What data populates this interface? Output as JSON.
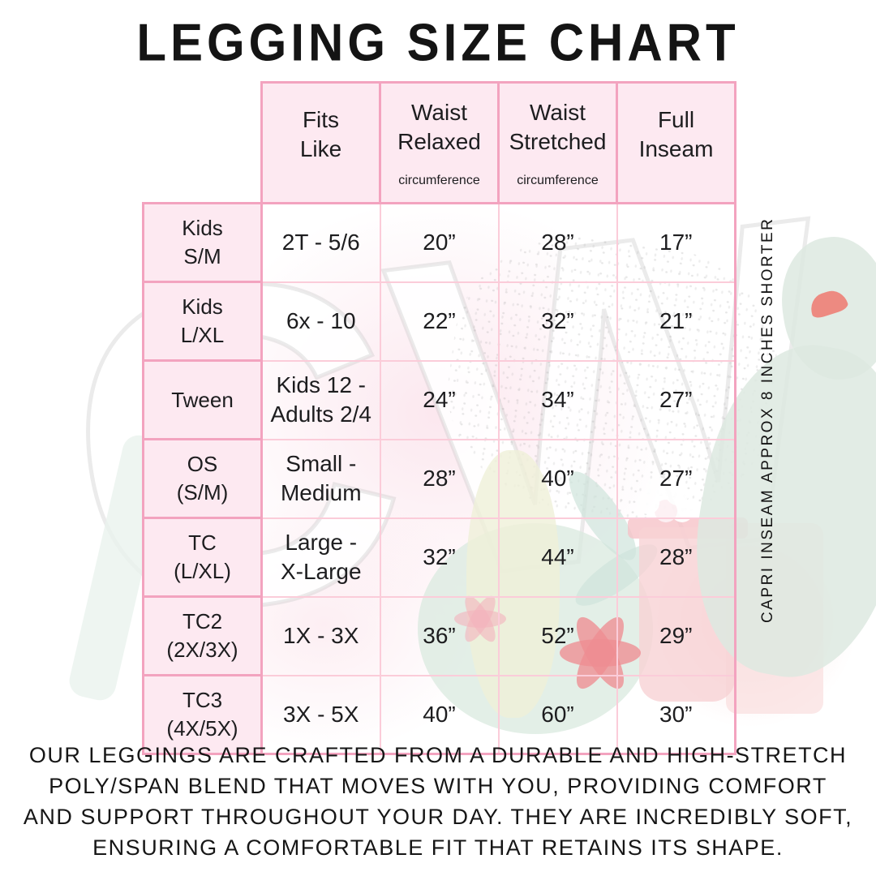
{
  "title": "LEGGING SIZE CHART",
  "side_note": "CAPRI INSEAM APPROX 8 INCHES SHORTER",
  "watermark": {
    "monogram": "CW"
  },
  "colors": {
    "border_strong": "#f3a3bf",
    "border_light": "#fbccd9",
    "header_fill": "#fde9f1",
    "text": "#1d1d1f"
  },
  "table": {
    "headers": [
      {
        "main": "Fits\nLike",
        "sub": ""
      },
      {
        "main": "Waist\nRelaxed",
        "sub": "circumference"
      },
      {
        "main": "Waist\nStretched",
        "sub": "circumference"
      },
      {
        "main": "Full\nInseam",
        "sub": ""
      }
    ],
    "rows": [
      {
        "label": "Kids\nS/M",
        "cells": [
          "2T - 5/6",
          "20”",
          "28”",
          "17”"
        ]
      },
      {
        "label": "Kids\nL/XL",
        "cells": [
          "6x - 10",
          "22”",
          "32”",
          "21”"
        ]
      },
      {
        "label": "Tween",
        "cells": [
          "Kids 12 -\nAdults 2/4",
          "24”",
          "34”",
          "27”"
        ]
      },
      {
        "label": "OS\n(S/M)",
        "cells": [
          "Small -\nMedium",
          "28”",
          "40”",
          "27”"
        ]
      },
      {
        "label": "TC\n(L/XL)",
        "cells": [
          "Large -\nX-Large",
          "32”",
          "44”",
          "28”"
        ]
      },
      {
        "label": "TC2\n(2X/3X)",
        "cells": [
          "1X - 3X",
          "36”",
          "52”",
          "29”"
        ]
      },
      {
        "label": "TC3\n(4X/5X)",
        "cells": [
          "3X - 5X",
          "40”",
          "60”",
          "30”"
        ]
      }
    ]
  },
  "footer": {
    "lines": [
      "OUR LEGGINGS ARE CRAFTED FROM A DURABLE AND HIGH-STRETCH",
      "POLY/SPAN BLEND THAT MOVES WITH YOU, PROVIDING COMFORT",
      "AND SUPPORT THROUGHOUT YOUR DAY. THEY ARE INCREDIBLY SOFT,",
      "ENSURING A COMFORTABLE FIT THAT RETAINS ITS SHAPE."
    ]
  },
  "chart_data": {
    "type": "table",
    "title": "LEGGING SIZE CHART",
    "columns": [
      "",
      "Fits Like",
      "Waist Relaxed circumference",
      "Waist Stretched circumference",
      "Full Inseam"
    ],
    "rows": [
      [
        "Kids S/M",
        "2T - 5/6",
        "20\"",
        "28\"",
        "17\""
      ],
      [
        "Kids L/XL",
        "6x - 10",
        "22\"",
        "32\"",
        "21\""
      ],
      [
        "Tween",
        "Kids 12 - Adults 2/4",
        "24\"",
        "34\"",
        "27\""
      ],
      [
        "OS (S/M)",
        "Small - Medium",
        "28\"",
        "40\"",
        "27\""
      ],
      [
        "TC (L/XL)",
        "Large - X-Large",
        "32\"",
        "44\"",
        "28\""
      ],
      [
        "TC2 (2X/3X)",
        "1X - 3X",
        "36\"",
        "52\"",
        "29\""
      ],
      [
        "TC3 (4X/5X)",
        "3X - 5X",
        "40\"",
        "60\"",
        "30\""
      ]
    ],
    "note": "CAPRI INSEAM APPROX 8 INCHES SHORTER"
  }
}
